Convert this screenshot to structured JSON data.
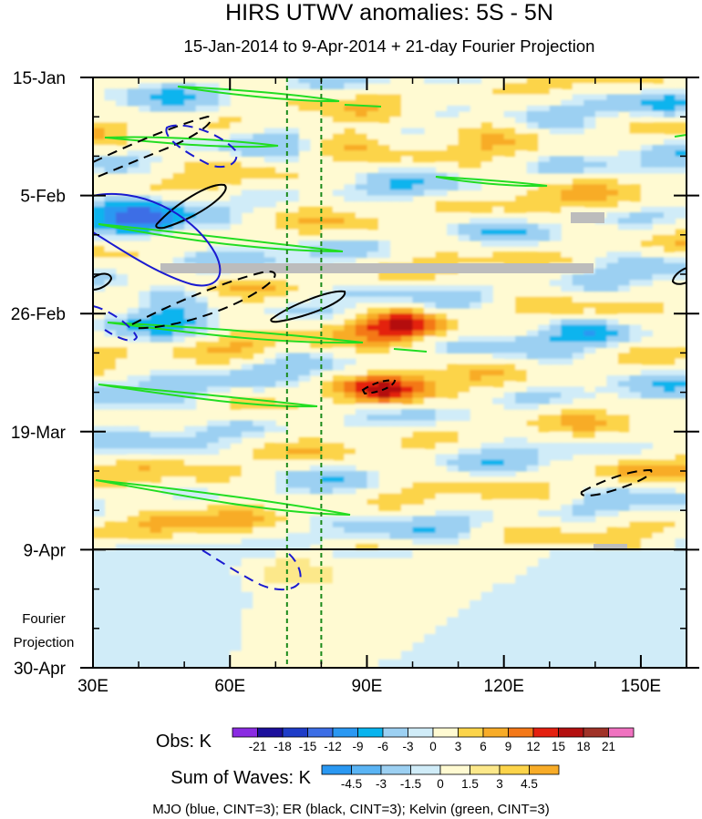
{
  "chart_data": {
    "type": "heatmap",
    "title": "HIRS UTWV anomalies: 5S - 5N",
    "subtitle": "15-Jan-2014 to 9-Apr-2014 + 21-day Fourier Projection",
    "x_ticks": [
      {
        "value": 30,
        "label": "30E"
      },
      {
        "value": 60,
        "label": "60E"
      },
      {
        "value": 90,
        "label": "90E"
      },
      {
        "value": 120,
        "label": "120E"
      },
      {
        "value": 150,
        "label": "150E"
      }
    ],
    "xlim": [
      30,
      160
    ],
    "y_ticks": [
      {
        "day": 0,
        "label": "15-Jan"
      },
      {
        "day": 21,
        "label": "5-Feb"
      },
      {
        "day": 42,
        "label": "26-Feb"
      },
      {
        "day": 63,
        "label": "19-Mar"
      },
      {
        "day": 84,
        "label": "9-Apr"
      },
      {
        "day": 105,
        "label": "30-Apr"
      }
    ],
    "ylim_days": [
      0,
      105
    ],
    "observation_end_day": 84,
    "projection_label_line1": "Fourier",
    "projection_label_line2": "Projection",
    "reference_longitudes": [
      72.5,
      80
    ],
    "hotspots": [
      {
        "lon": 94,
        "day": 56,
        "value": 16
      },
      {
        "lon": 98,
        "day": 44,
        "value": 14
      },
      {
        "lon": 84,
        "day": 11,
        "value": 7
      },
      {
        "lon": 116,
        "day": 8,
        "value": 5
      },
      {
        "lon": 58,
        "day": 71,
        "value": 6
      },
      {
        "lon": 45,
        "day": 80,
        "value": 6
      },
      {
        "lon": 148,
        "day": 70,
        "value": 5
      },
      {
        "lon": 40,
        "day": 26,
        "value": -12
      },
      {
        "lon": 46,
        "day": 40,
        "value": -7
      },
      {
        "lon": 50,
        "day": 57,
        "value": -9
      },
      {
        "lon": 155,
        "day": 5,
        "value": -7
      },
      {
        "lon": 140,
        "day": 45,
        "value": -5
      },
      {
        "lon": 62,
        "day": 48,
        "value": 5
      },
      {
        "lon": 126,
        "day": 23,
        "value": 4
      }
    ],
    "obs_colorbar": {
      "label": "Obs: K",
      "ticks": [
        "-21",
        "-18",
        "-15",
        "-12",
        "-9",
        "-6",
        "-3",
        "0",
        "3",
        "6",
        "9",
        "12",
        "15",
        "18",
        "21"
      ],
      "colors": [
        "#8a2be2",
        "#1c0f9c",
        "#1e3cc8",
        "#3c6ee6",
        "#2a98f2",
        "#08b4ee",
        "#9cd0f2",
        "#d0ecf8",
        "#fffad2",
        "#fcd44a",
        "#f8ac28",
        "#f47818",
        "#e42010",
        "#b41010",
        "#a03228",
        "#f072c0"
      ]
    },
    "waves_colorbar": {
      "label": "Sum of Waves: K",
      "ticks": [
        "-4.5",
        "-3",
        "-1.5",
        "0",
        "1.5",
        "3",
        "4.5"
      ],
      "colors": [
        "#2a98f2",
        "#5ab4f4",
        "#9cd0f2",
        "#d0ecf8",
        "#fffad2",
        "#fce88a",
        "#fcd44a",
        "#f8ac28"
      ]
    },
    "footnote": "MJO (blue, CINT=3); ER (black, CINT=3); Kelvin (green, CINT=3)",
    "series": [
      {
        "name": "MJO",
        "color": "#1a1ad0"
      },
      {
        "name": "ER",
        "color": "#000000"
      },
      {
        "name": "Kelvin",
        "color": "#22dd22"
      }
    ]
  }
}
